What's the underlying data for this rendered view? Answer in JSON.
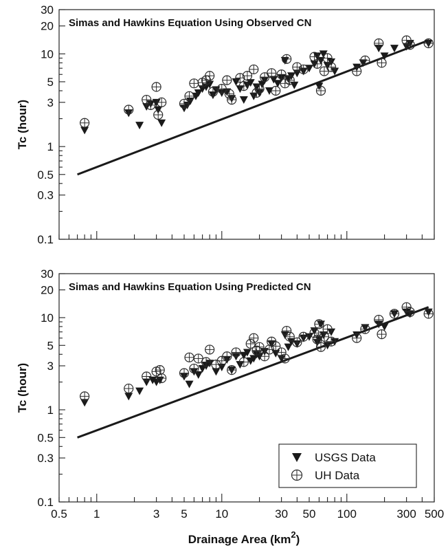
{
  "chart_data": [
    {
      "type": "scatter",
      "title": "Simas and Hawkins Equation Using Observed CN",
      "ylabel": "Tc (hour)",
      "xlabel": "",
      "xscale": "log",
      "yscale": "log",
      "xlim": [
        0.5,
        500
      ],
      "ylim": [
        0.1,
        30
      ],
      "yticks": [
        "0.1",
        "0.3",
        "0.5",
        "1",
        "3",
        "5",
        "10",
        "20",
        "30"
      ],
      "xtick_labels_shown": false,
      "line": {
        "x": [
          0.7,
          450
        ],
        "y": [
          0.5,
          14
        ]
      },
      "series": [
        {
          "marker": "triangle-down",
          "points": [
            [
              0.8,
              1.5
            ],
            [
              1.8,
              2.3
            ],
            [
              2.2,
              1.7
            ],
            [
              2.5,
              2.7
            ],
            [
              2.7,
              2.9
            ],
            [
              3.0,
              3.0
            ],
            [
              3.1,
              2.5
            ],
            [
              3.3,
              1.8
            ],
            [
              5,
              2.6
            ],
            [
              5.3,
              2.8
            ],
            [
              5.6,
              3.1
            ],
            [
              6.2,
              3.5
            ],
            [
              6.5,
              3.8
            ],
            [
              7,
              4.2
            ],
            [
              7.5,
              4.4
            ],
            [
              8,
              4.7
            ],
            [
              8.5,
              3.6
            ],
            [
              9,
              4.1
            ],
            [
              10,
              3.8
            ],
            [
              11,
              3.9
            ],
            [
              12,
              3.3
            ],
            [
              13,
              5.0
            ],
            [
              14,
              4.2
            ],
            [
              15,
              3.2
            ],
            [
              16,
              4.6
            ],
            [
              17,
              4.9
            ],
            [
              18,
              3.5
            ],
            [
              19,
              4.4
            ],
            [
              20,
              3.8
            ],
            [
              21,
              4.7
            ],
            [
              22,
              5.2
            ],
            [
              24,
              4.0
            ],
            [
              26,
              5.3
            ],
            [
              28,
              4.8
            ],
            [
              30,
              5.5
            ],
            [
              32,
              8.5
            ],
            [
              34,
              5.4
            ],
            [
              36,
              5.8
            ],
            [
              38,
              4.6
            ],
            [
              40,
              6.2
            ],
            [
              45,
              6.5
            ],
            [
              50,
              7.0
            ],
            [
              55,
              7.8
            ],
            [
              58,
              9.5
            ],
            [
              60,
              4.5
            ],
            [
              62,
              8.5
            ],
            [
              65,
              10.0
            ],
            [
              70,
              7.5
            ],
            [
              75,
              8.2
            ],
            [
              80,
              6.5
            ],
            [
              120,
              7.2
            ],
            [
              135,
              8.0
            ],
            [
              180,
              11.5
            ],
            [
              200,
              9.5
            ],
            [
              240,
              11.5
            ],
            [
              300,
              12.0
            ],
            [
              320,
              13.0
            ],
            [
              450,
              13.0
            ]
          ]
        },
        {
          "marker": "circle-plus",
          "points": [
            [
              0.8,
              1.8
            ],
            [
              1.8,
              2.5
            ],
            [
              2.5,
              3.2
            ],
            [
              2.7,
              2.8
            ],
            [
              3.0,
              4.4
            ],
            [
              3.1,
              2.2
            ],
            [
              3.3,
              3.0
            ],
            [
              5,
              2.9
            ],
            [
              5.5,
              3.5
            ],
            [
              6,
              4.8
            ],
            [
              7,
              4.9
            ],
            [
              7.5,
              5.2
            ],
            [
              8,
              5.8
            ],
            [
              8.5,
              3.9
            ],
            [
              10,
              4.2
            ],
            [
              11,
              5.2
            ],
            [
              11.5,
              3.7
            ],
            [
              12,
              3.2
            ],
            [
              14,
              5.5
            ],
            [
              15,
              4.5
            ],
            [
              16,
              5.8
            ],
            [
              18,
              6.8
            ],
            [
              19,
              3.8
            ],
            [
              20,
              4.2
            ],
            [
              22,
              5.6
            ],
            [
              25,
              6.2
            ],
            [
              27,
              4.0
            ],
            [
              30,
              6.0
            ],
            [
              32,
              4.8
            ],
            [
              33,
              8.8
            ],
            [
              35,
              5.2
            ],
            [
              40,
              7.2
            ],
            [
              45,
              6.8
            ],
            [
              55,
              9.3
            ],
            [
              58,
              7.8
            ],
            [
              62,
              4.0
            ],
            [
              66,
              6.5
            ],
            [
              70,
              9.0
            ],
            [
              75,
              7.2
            ],
            [
              120,
              6.5
            ],
            [
              140,
              8.5
            ],
            [
              180,
              13.0
            ],
            [
              190,
              8.0
            ],
            [
              300,
              14.0
            ],
            [
              320,
              12.5
            ],
            [
              450,
              13.0
            ]
          ]
        }
      ]
    },
    {
      "type": "scatter",
      "title": "Simas and Hawkins Equation Using Predicted CN",
      "ylabel": "Tc (hour)",
      "xlabel": "Drainage Area (km",
      "xlabel_sup": "2",
      "xlabel_end": ")",
      "xscale": "log",
      "yscale": "log",
      "xlim": [
        0.5,
        500
      ],
      "ylim": [
        0.1,
        30
      ],
      "yticks": [
        "0.1",
        "0.3",
        "0.5",
        "1",
        "3",
        "5",
        "10",
        "20",
        "30"
      ],
      "xticks": [
        "0.5",
        "1",
        "3",
        "5",
        "10",
        "30",
        "50",
        "100",
        "300",
        "500"
      ],
      "line": {
        "x": [
          0.7,
          450
        ],
        "y": [
          0.5,
          13
        ]
      },
      "legend": {
        "position": "bottom-right",
        "entries": [
          "USGS Data",
          "UH Data"
        ]
      },
      "series": [
        {
          "name": "USGS Data",
          "marker": "triangle-down",
          "points": [
            [
              0.8,
              1.2
            ],
            [
              1.8,
              1.4
            ],
            [
              2.2,
              1.6
            ],
            [
              2.5,
              2.0
            ],
            [
              2.8,
              2.1
            ],
            [
              3.0,
              2.0
            ],
            [
              3.2,
              2.1
            ],
            [
              5,
              2.3
            ],
            [
              5.5,
              1.9
            ],
            [
              6,
              2.6
            ],
            [
              6.5,
              2.4
            ],
            [
              7,
              2.8
            ],
            [
              7.5,
              3.0
            ],
            [
              8,
              3.2
            ],
            [
              9,
              2.6
            ],
            [
              10,
              2.9
            ],
            [
              11,
              3.5
            ],
            [
              12,
              2.7
            ],
            [
              13,
              3.8
            ],
            [
              14,
              3.1
            ],
            [
              15,
              3.9
            ],
            [
              16,
              4.2
            ],
            [
              17,
              3.4
            ],
            [
              18,
              3.6
            ],
            [
              19,
              4.0
            ],
            [
              20,
              3.8
            ],
            [
              22,
              4.3
            ],
            [
              25,
              5.2
            ],
            [
              27,
              4.1
            ],
            [
              30,
              3.6
            ],
            [
              32,
              6.5
            ],
            [
              34,
              4.8
            ],
            [
              36,
              5.5
            ],
            [
              40,
              5.2
            ],
            [
              45,
              6.0
            ],
            [
              50,
              6.2
            ],
            [
              55,
              7.2
            ],
            [
              58,
              5.4
            ],
            [
              60,
              5.8
            ],
            [
              62,
              8.5
            ],
            [
              65,
              6.5
            ],
            [
              70,
              5.0
            ],
            [
              75,
              7.0
            ],
            [
              80,
              5.5
            ],
            [
              120,
              6.5
            ],
            [
              140,
              7.8
            ],
            [
              180,
              8.5
            ],
            [
              200,
              8.0
            ],
            [
              240,
              11.0
            ],
            [
              300,
              11.5
            ],
            [
              320,
              11.0
            ],
            [
              450,
              11.5
            ]
          ]
        },
        {
          "name": "UH Data",
          "marker": "circle-plus",
          "points": [
            [
              0.8,
              1.4
            ],
            [
              1.8,
              1.7
            ],
            [
              2.5,
              2.3
            ],
            [
              3.0,
              2.6
            ],
            [
              3.2,
              2.7
            ],
            [
              3.3,
              2.2
            ],
            [
              5,
              2.5
            ],
            [
              5.5,
              3.7
            ],
            [
              6,
              2.8
            ],
            [
              6.5,
              3.6
            ],
            [
              7.5,
              3.3
            ],
            [
              8,
              4.5
            ],
            [
              9,
              3.1
            ],
            [
              10,
              3.4
            ],
            [
              11,
              3.8
            ],
            [
              12,
              2.7
            ],
            [
              13,
              4.2
            ],
            [
              15,
              3.3
            ],
            [
              17,
              5.2
            ],
            [
              18,
              6.0
            ],
            [
              19,
              4.4
            ],
            [
              20,
              4.8
            ],
            [
              22,
              3.8
            ],
            [
              24,
              4.5
            ],
            [
              25,
              5.5
            ],
            [
              27,
              4.9
            ],
            [
              30,
              4.2
            ],
            [
              32,
              3.6
            ],
            [
              33,
              7.2
            ],
            [
              35,
              6.2
            ],
            [
              40,
              5.4
            ],
            [
              45,
              6.2
            ],
            [
              55,
              6.8
            ],
            [
              58,
              5.8
            ],
            [
              60,
              8.5
            ],
            [
              62,
              4.8
            ],
            [
              66,
              6.2
            ],
            [
              70,
              7.5
            ],
            [
              75,
              5.5
            ],
            [
              120,
              6.0
            ],
            [
              140,
              7.5
            ],
            [
              180,
              9.5
            ],
            [
              190,
              6.6
            ],
            [
              240,
              11.0
            ],
            [
              300,
              13.0
            ],
            [
              320,
              11.5
            ],
            [
              450,
              11.0
            ]
          ]
        }
      ]
    }
  ]
}
